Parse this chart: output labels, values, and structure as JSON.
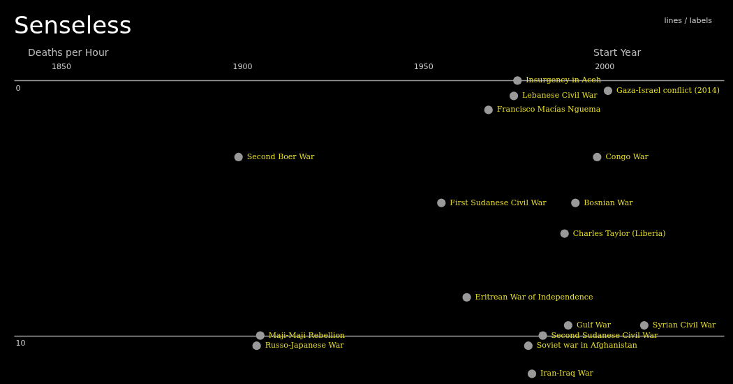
{
  "chart_data": {
    "type": "scatter",
    "title": "Senseless",
    "xlabel": "Start Year",
    "ylabel": "Deaths per Hour",
    "x": [
      1976,
      1975,
      2001,
      1968,
      1899,
      1998,
      1955,
      1992,
      1989,
      1962,
      1990,
      2011,
      1905,
      1904,
      1983,
      1979,
      1980
    ],
    "series": [
      {
        "color": "#999999",
        "values": [
          0,
          0.6,
          0.4,
          1.15,
          3,
          3,
          4.8,
          4.8,
          6,
          8.5,
          9.6,
          9.6,
          10,
          10.4,
          10,
          10.4,
          11.5
        ]
      }
    ],
    "xlim": [
      1837,
      2033
    ],
    "ylim": [
      11.9,
      -3.16
    ],
    "xticks": [
      1850,
      1900,
      1950,
      2000
    ],
    "yticks": [
      0,
      10
    ],
    "grid": "y",
    "marker": "circle",
    "annotations": [
      "lines / labels",
      {
        "text": "Insurgency in Aceh",
        "x": 1976,
        "y": 0
      },
      {
        "text": "Lebanese Civil War",
        "x": 1975,
        "y": 0.6
      },
      {
        "text": "Gaza-Israel conflict (2014)",
        "x": 2001,
        "y": 0.4
      },
      {
        "text": "Francisco Macías Nguema",
        "x": 1968,
        "y": 1.15
      },
      {
        "text": "Second Boer War",
        "x": 1899,
        "y": 3
      },
      {
        "text": "Congo War",
        "x": 1998,
        "y": 3
      },
      {
        "text": "First Sudanese Civil War",
        "x": 1955,
        "y": 4.8
      },
      {
        "text": "Bosnian War",
        "x": 1992,
        "y": 4.8
      },
      {
        "text": "Charles Taylor (Liberia)",
        "x": 1989,
        "y": 6
      },
      {
        "text": "Eritrean War of Independence",
        "x": 1962,
        "y": 8.5
      },
      {
        "text": "Gulf War",
        "x": 1990,
        "y": 9.6
      },
      {
        "text": "Syrian Civil War",
        "x": 2011,
        "y": 9.6
      },
      {
        "text": "Maji-Maji Rebellion",
        "x": 1905,
        "y": 10
      },
      {
        "text": "Russo-Japanese War",
        "x": 1904,
        "y": 10.4
      },
      {
        "text": "Second Sudanese Civil War",
        "x": 1983,
        "y": 10
      },
      {
        "text": "Soviet war in Afghanistan",
        "x": 1979,
        "y": 10.4
      },
      {
        "text": "Iran-Iraq War",
        "x": 1980,
        "y": 11.5
      }
    ]
  }
}
